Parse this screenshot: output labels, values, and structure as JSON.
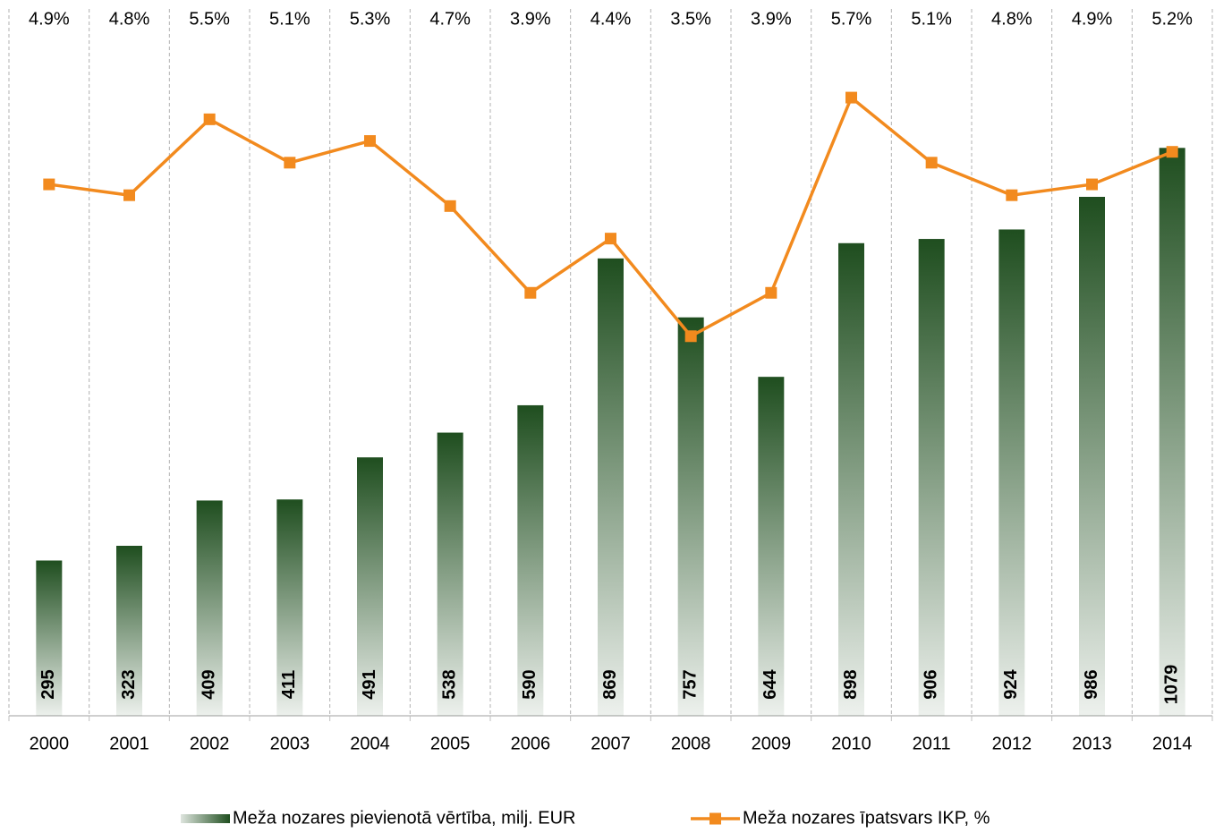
{
  "chart_data": {
    "type": "combo",
    "categories": [
      "2000",
      "2001",
      "2002",
      "2003",
      "2004",
      "2005",
      "2006",
      "2007",
      "2008",
      "2009",
      "2010",
      "2011",
      "2012",
      "2013",
      "2014"
    ],
    "series": [
      {
        "name": "Meža nozares pievienotā vērtība, milj. EUR",
        "type": "bar",
        "color": "#1f4e1f",
        "values": [
          295,
          323,
          409,
          411,
          491,
          538,
          590,
          869,
          757,
          644,
          898,
          906,
          924,
          986,
          1079
        ]
      },
      {
        "name": "Meža nozares īpatsvars IKP, %",
        "type": "line",
        "axis": "y2",
        "color": "#f28a1e",
        "values": [
          4.9,
          4.8,
          5.5,
          5.1,
          5.3,
          4.7,
          3.9,
          4.4,
          3.5,
          3.9,
          5.7,
          5.1,
          4.8,
          4.9,
          5.2
        ],
        "value_labels": [
          "4.9%",
          "4.8%",
          "5.5%",
          "5.1%",
          "5.3%",
          "4.7%",
          "3.9%",
          "4.4%",
          "3.5%",
          "3.9%",
          "5.7%",
          "5.1%",
          "4.8%",
          "4.9%",
          "5.2%"
        ]
      }
    ],
    "ylim": [
      0,
      1360
    ],
    "y2lim": [
      0,
      6.6
    ],
    "legend": "bottom"
  }
}
